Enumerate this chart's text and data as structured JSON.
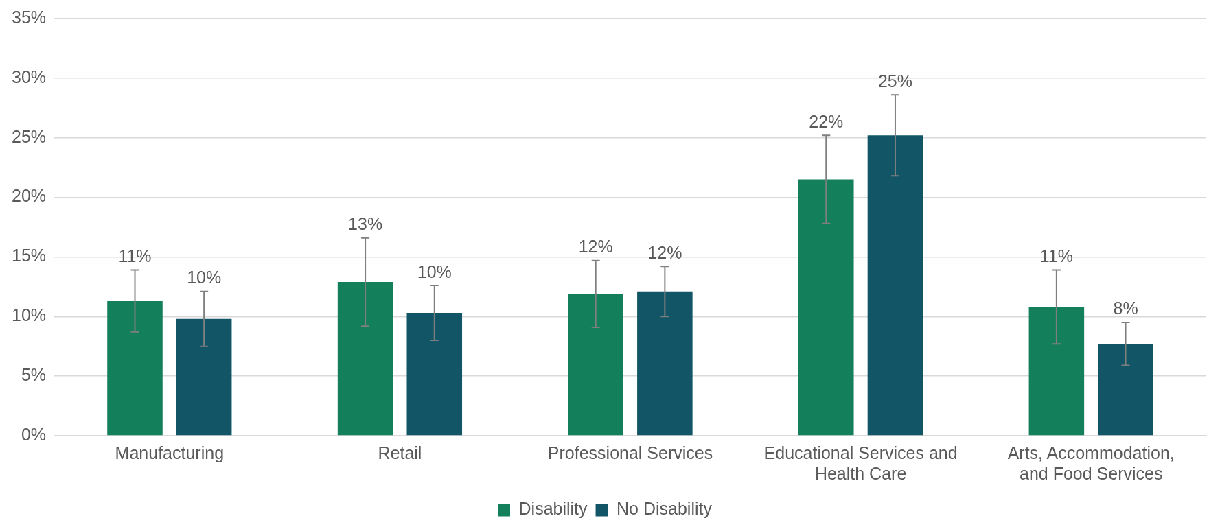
{
  "chart_data": {
    "type": "bar",
    "categories": [
      "Manufacturing",
      "Retail",
      "Professional Services",
      "Educational Services and Health Care",
      "Arts, Accommodation, and Food Services"
    ],
    "series": [
      {
        "name": "Disability",
        "color": "#13805b",
        "values": [
          11.3,
          12.9,
          11.9,
          21.5,
          10.8
        ],
        "errors": [
          [
            8.7,
            13.9
          ],
          [
            9.2,
            16.6
          ],
          [
            9.1,
            14.7
          ],
          [
            17.8,
            25.2
          ],
          [
            7.7,
            13.9
          ]
        ],
        "value_labels": [
          "11%",
          "13%",
          "12%",
          "22%",
          "11%"
        ]
      },
      {
        "name": "No Disability",
        "color": "#115566",
        "values": [
          9.8,
          10.3,
          12.1,
          25.2,
          7.7
        ],
        "errors": [
          [
            7.5,
            12.1
          ],
          [
            8.0,
            12.6
          ],
          [
            10.0,
            14.2
          ],
          [
            21.8,
            28.6
          ],
          [
            5.9,
            9.5
          ]
        ],
        "value_labels": [
          "10%",
          "10%",
          "12%",
          "25%",
          "8%"
        ]
      }
    ],
    "ylim": [
      0,
      35
    ],
    "yticks": [
      {
        "value": 0,
        "label": "0%"
      },
      {
        "value": 5,
        "label": "5%"
      },
      {
        "value": 10,
        "label": "10%"
      },
      {
        "value": 15,
        "label": "15%"
      },
      {
        "value": 20,
        "label": "20%"
      },
      {
        "value": 25,
        "label": "25%"
      },
      {
        "value": 30,
        "label": "30%"
      },
      {
        "value": 35,
        "label": "35%"
      }
    ],
    "grid": "y",
    "legend": "bottom"
  }
}
